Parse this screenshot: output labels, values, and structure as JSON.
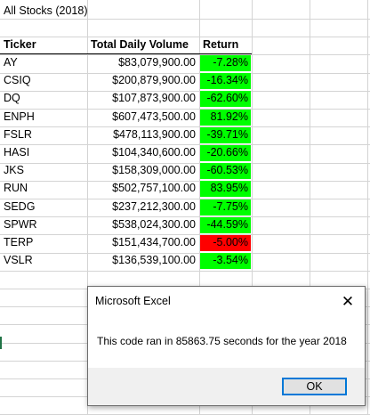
{
  "sheet": {
    "title": "All Stocks (2018)",
    "headers": {
      "ticker": "Ticker",
      "volume": "Total Daily Volume",
      "return": "Return"
    },
    "rows": [
      {
        "ticker": "AY",
        "volume": "$83,079,900.00",
        "return": "-7.28%",
        "status": "positive"
      },
      {
        "ticker": "CSIQ",
        "volume": "$200,879,900.00",
        "return": "-16.34%",
        "status": "positive"
      },
      {
        "ticker": "DQ",
        "volume": "$107,873,900.00",
        "return": "-62.60%",
        "status": "positive"
      },
      {
        "ticker": "ENPH",
        "volume": "$607,473,500.00",
        "return": "81.92%",
        "status": "positive"
      },
      {
        "ticker": "FSLR",
        "volume": "$478,113,900.00",
        "return": "-39.71%",
        "status": "positive"
      },
      {
        "ticker": "HASI",
        "volume": "$104,340,600.00",
        "return": "-20.66%",
        "status": "positive"
      },
      {
        "ticker": "JKS",
        "volume": "$158,309,000.00",
        "return": "-60.53%",
        "status": "positive"
      },
      {
        "ticker": "RUN",
        "volume": "$502,757,100.00",
        "return": "83.95%",
        "status": "positive"
      },
      {
        "ticker": "SEDG",
        "volume": "$237,212,300.00",
        "return": "-7.75%",
        "status": "positive"
      },
      {
        "ticker": "SPWR",
        "volume": "$538,024,300.00",
        "return": "-44.59%",
        "status": "positive"
      },
      {
        "ticker": "TERP",
        "volume": "$151,434,700.00",
        "return": "-5.00%",
        "status": "negative"
      },
      {
        "ticker": "VSLR",
        "volume": "$136,539,100.00",
        "return": "-3.54%",
        "status": "positive"
      }
    ]
  },
  "colors": {
    "positive": "#00ff00",
    "negative": "#ff0000"
  },
  "dialog": {
    "title": "Microsoft Excel",
    "message": "This code ran in 85863.75 seconds for the year 2018",
    "ok_label": "OK",
    "close_icon": "close-icon"
  }
}
